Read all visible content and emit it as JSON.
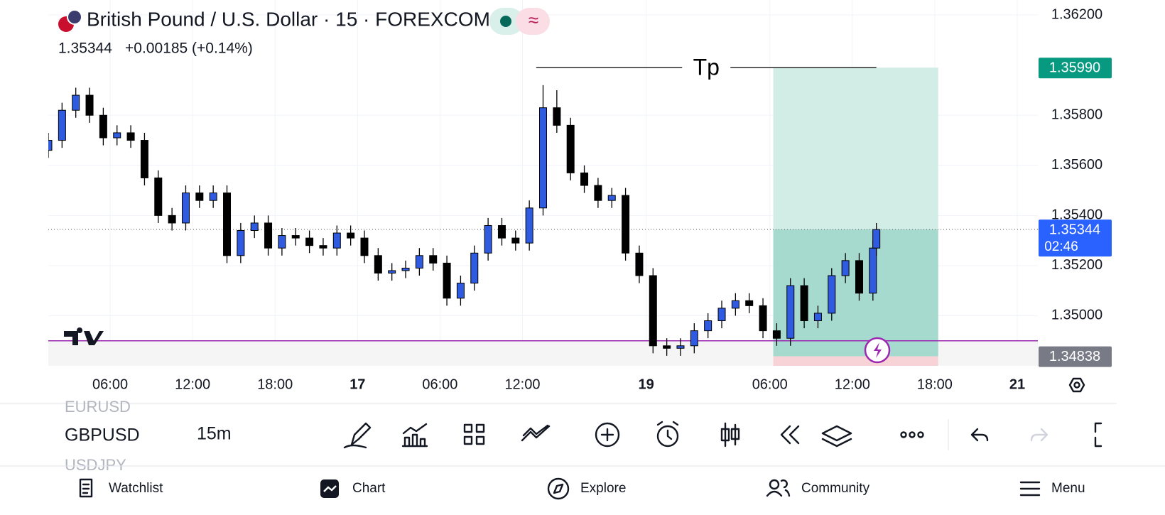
{
  "header": {
    "title": "British Pound / U.S. Dollar · 15 · FOREXCOM",
    "price": "1.35344",
    "change": "+0.00185 (+0.14%)"
  },
  "chart_data": {
    "type": "candlestick",
    "x": [
      0,
      4,
      8,
      12,
      16,
      20,
      24,
      28,
      32,
      36,
      40,
      44,
      48,
      52,
      56,
      60,
      64,
      68,
      72,
      76,
      80,
      84,
      88,
      92,
      96,
      100,
      104,
      108,
      112,
      116,
      120,
      124,
      128,
      132,
      136,
      140,
      144,
      148,
      152,
      156,
      160,
      164,
      168,
      172,
      176,
      180,
      184,
      188,
      192,
      196,
      200,
      204,
      208,
      212,
      216,
      220,
      224,
      228,
      232,
      236,
      240,
      241
    ],
    "open": [
      1.3566,
      1.357,
      1.3582,
      1.3588,
      1.358,
      1.3571,
      1.3573,
      1.357,
      1.3555,
      1.354,
      1.3537,
      1.3549,
      1.3546,
      1.3549,
      1.3524,
      1.3534,
      1.3537,
      1.3527,
      1.3532,
      1.3531,
      1.3528,
      1.3527,
      1.3533,
      1.3531,
      1.3524,
      1.3517,
      1.3518,
      1.3519,
      1.3524,
      1.3521,
      1.3507,
      1.3513,
      1.3525,
      1.3536,
      1.3531,
      1.3529,
      1.3543,
      1.3583,
      1.3576,
      1.3557,
      1.3552,
      1.3546,
      1.3548,
      1.3525,
      1.3516,
      1.3488,
      1.3487,
      1.3488,
      1.3494,
      1.3498,
      1.3503,
      1.3506,
      1.3504,
      1.3494,
      1.3491,
      1.3512,
      1.3498,
      1.3501,
      1.3516,
      1.3522,
      1.3509,
      1.3527
    ],
    "high": [
      1.3573,
      1.3585,
      1.3591,
      1.3591,
      1.3583,
      1.3576,
      1.3576,
      1.3573,
      1.3558,
      1.3543,
      1.3552,
      1.3552,
      1.3552,
      1.3552,
      1.3537,
      1.354,
      1.354,
      1.3535,
      1.3535,
      1.3534,
      1.3531,
      1.3536,
      1.3536,
      1.3534,
      1.3527,
      1.3521,
      1.3522,
      1.3527,
      1.3527,
      1.3524,
      1.3516,
      1.3528,
      1.3539,
      1.3539,
      1.3534,
      1.3546,
      1.3592,
      1.359,
      1.3579,
      1.356,
      1.3555,
      1.3551,
      1.3551,
      1.3528,
      1.3519,
      1.3491,
      1.3491,
      1.3497,
      1.3501,
      1.3506,
      1.3509,
      1.3509,
      1.3507,
      1.3497,
      1.3515,
      1.3515,
      1.3504,
      1.3519,
      1.3525,
      1.3525,
      1.353,
      1.3537
    ],
    "low": [
      1.3563,
      1.3567,
      1.3579,
      1.3577,
      1.3568,
      1.3568,
      1.3567,
      1.3552,
      1.3537,
      1.3534,
      1.3534,
      1.3543,
      1.3543,
      1.3521,
      1.3521,
      1.3531,
      1.3524,
      1.3524,
      1.3528,
      1.3525,
      1.3524,
      1.3524,
      1.3528,
      1.3521,
      1.3514,
      1.3514,
      1.3515,
      1.3516,
      1.3518,
      1.3504,
      1.3504,
      1.351,
      1.3522,
      1.3528,
      1.3526,
      1.3526,
      1.354,
      1.3573,
      1.3554,
      1.3549,
      1.3543,
      1.3543,
      1.3522,
      1.3513,
      1.3485,
      1.3484,
      1.3484,
      1.3485,
      1.3491,
      1.3495,
      1.35,
      1.3501,
      1.3491,
      1.3488,
      1.3488,
      1.3495,
      1.3495,
      1.3498,
      1.3513,
      1.3506,
      1.3506,
      1.3524
    ],
    "close": [
      1.357,
      1.3582,
      1.3588,
      1.358,
      1.3571,
      1.3573,
      1.357,
      1.3555,
      1.354,
      1.3537,
      1.3549,
      1.3546,
      1.3549,
      1.3524,
      1.3534,
      1.3537,
      1.3527,
      1.3532,
      1.3531,
      1.3528,
      1.3527,
      1.3533,
      1.3531,
      1.3524,
      1.3517,
      1.3518,
      1.3519,
      1.3524,
      1.3521,
      1.3507,
      1.3513,
      1.3525,
      1.3536,
      1.3531,
      1.3529,
      1.3543,
      1.3583,
      1.3576,
      1.3557,
      1.3552,
      1.3546,
      1.3548,
      1.3525,
      1.3516,
      1.3488,
      1.3487,
      1.3488,
      1.3494,
      1.3498,
      1.3503,
      1.3506,
      1.3504,
      1.3494,
      1.3491,
      1.3512,
      1.3498,
      1.3501,
      1.3516,
      1.3522,
      1.3509,
      1.3527,
      1.35344
    ],
    "up_color": "#2f5be0",
    "down_color": "#000000",
    "xlim": [
      0,
      288
    ],
    "xticks": [
      {
        "value": 18,
        "label": "06:00"
      },
      {
        "value": 42,
        "label": "12:00"
      },
      {
        "value": 66,
        "label": "18:00"
      },
      {
        "value": 90,
        "label": "17"
      },
      {
        "value": 114,
        "label": "06:00"
      },
      {
        "value": 138,
        "label": "12:00"
      },
      {
        "value": 174,
        "label": "19"
      },
      {
        "value": 210,
        "label": "06:00"
      },
      {
        "value": 234,
        "label": "12:00"
      },
      {
        "value": 258,
        "label": "18:00"
      },
      {
        "value": 282,
        "label": "21"
      }
    ],
    "ylim": [
      1.348,
      1.3626
    ],
    "yticks": [
      {
        "value": 1.362,
        "label": "1.36200"
      },
      {
        "value": 1.358,
        "label": "1.35800"
      },
      {
        "value": 1.356,
        "label": "1.35600"
      },
      {
        "value": 1.354,
        "label": "1.35400"
      },
      {
        "value": 1.352,
        "label": "1.35200"
      },
      {
        "value": 1.35,
        "label": "1.35000"
      }
    ],
    "grid": true,
    "last_price": {
      "value": 1.35344,
      "label": "1.35344",
      "countdown": "02:46",
      "color": "#2962ff"
    },
    "horizontal_line": {
      "value": 1.349,
      "color": "#9c27b0"
    },
    "position": {
      "start": 211,
      "end": 259,
      "target": {
        "value": 1.3599,
        "label": "1.35990"
      },
      "entry": {
        "value": 1.34838,
        "label": "1.34838"
      },
      "stop": 1.3478,
      "profit_color": "#d2ece6",
      "loss_color": "#f7d2d6",
      "target_color": "#089981",
      "entry_color": "#787b86"
    },
    "tp_line": {
      "label": "Tp",
      "start": 142,
      "end": 241
    }
  },
  "toolbar": {
    "symbols": [
      "EURUSD",
      "GBPUSD",
      "USDJPY"
    ],
    "interval": "15m"
  },
  "nav": [
    "Watchlist",
    "Chart",
    "Explore",
    "Community",
    "Menu"
  ]
}
